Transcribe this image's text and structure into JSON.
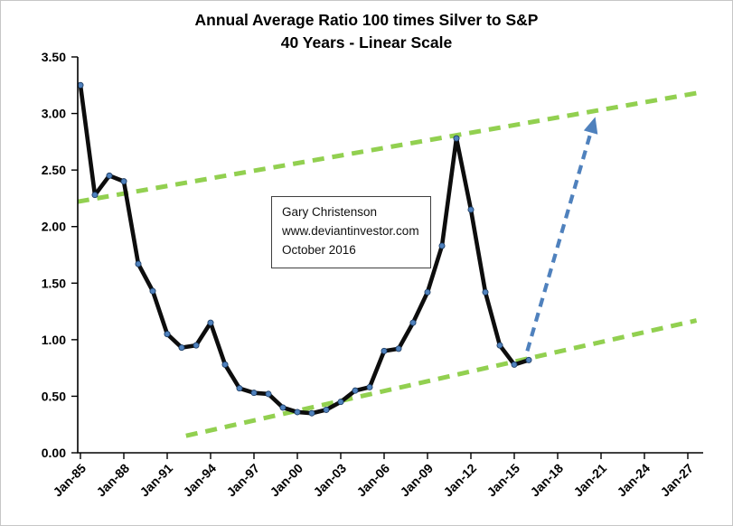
{
  "chart_data": {
    "type": "line",
    "title": "Annual Average Ratio 100 times Silver to S&P",
    "subtitle": "40 Years - Linear Scale",
    "series_name": "Annual average ratio of 100 times silver to S&P",
    "x": [
      1985,
      1986,
      1987,
      1988,
      1989,
      1990,
      1991,
      1992,
      1993,
      1994,
      1995,
      1996,
      1997,
      1998,
      1999,
      2000,
      2001,
      2002,
      2003,
      2004,
      2005,
      2006,
      2007,
      2008,
      2009,
      2010,
      2011,
      2012,
      2013,
      2014,
      2015,
      2016
    ],
    "values": [
      3.25,
      2.28,
      2.45,
      2.4,
      1.67,
      1.43,
      1.05,
      0.93,
      0.95,
      1.15,
      0.78,
      0.57,
      0.53,
      0.52,
      0.4,
      0.36,
      0.35,
      0.38,
      0.45,
      0.55,
      0.58,
      0.9,
      0.92,
      1.15,
      1.42,
      1.83,
      2.78,
      2.15,
      1.42,
      0.95,
      0.78,
      0.82
    ],
    "xlim": [
      1984.5,
      2028
    ],
    "ylim": [
      0,
      3.5
    ],
    "grid": false,
    "legend": "none",
    "y_ticks": [
      0,
      0.5,
      1.0,
      1.5,
      2.0,
      2.5,
      3.0,
      3.5
    ],
    "y_tick_labels": [
      "0.00",
      "0.50",
      "1.00",
      "1.50",
      "2.00",
      "2.50",
      "3.00",
      "3.50"
    ],
    "x_ticks": [
      1985,
      1988,
      1991,
      1994,
      1997,
      2000,
      2003,
      2006,
      2009,
      2012,
      2015,
      2018,
      2021,
      2024,
      2027
    ],
    "x_tick_labels": [
      "Jan-85",
      "Jan-88",
      "Jan-91",
      "Jan-94",
      "Jan-97",
      "Jan-00",
      "Jan-03",
      "Jan-06",
      "Jan-09",
      "Jan-12",
      "Jan-15",
      "Jan-18",
      "Jan-21",
      "Jan-24",
      "Jan-27"
    ],
    "trend_lines": [
      {
        "name": "upper-channel-trendline",
        "x1": 1984.8,
        "y1": 2.22,
        "x2": 2027.6,
        "y2": 3.18
      },
      {
        "name": "lower-channel-trendline",
        "x1": 1992.3,
        "y1": 0.15,
        "x2": 2027.6,
        "y2": 1.17
      }
    ],
    "arrow": {
      "x1": 2015.9,
      "y1": 0.9,
      "x2": 2020.6,
      "y2": 2.97
    },
    "annotation": {
      "lines": [
        "Gary Christenson",
        "www.deviantinvestor.com",
        "October 2016"
      ]
    },
    "colors": {
      "series": "#0d0d0d",
      "marker": "#4f81bd",
      "trend": "#92d050",
      "arrow": "#4f81bd",
      "axis": "#000000"
    }
  }
}
